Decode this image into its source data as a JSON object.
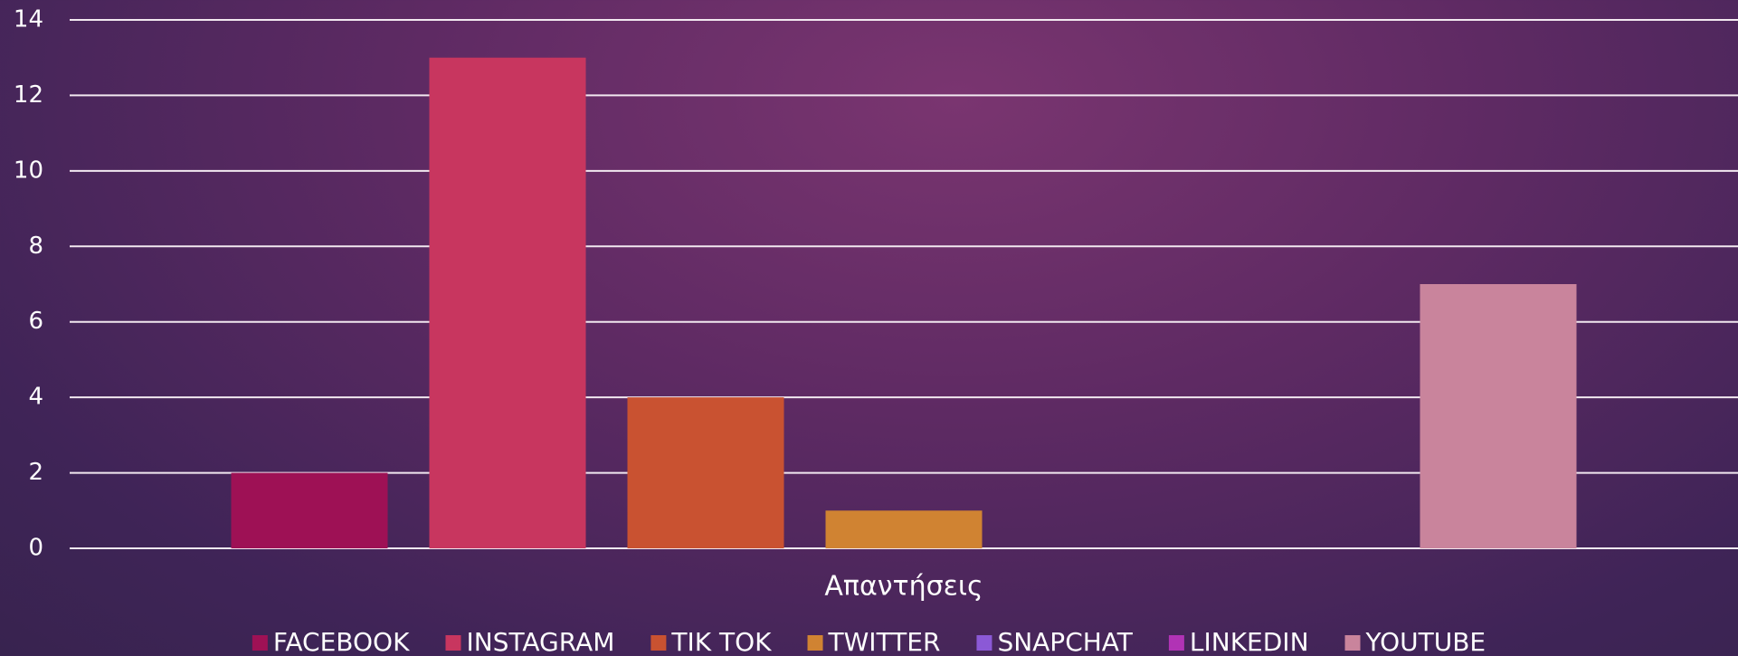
{
  "chart_data": {
    "type": "bar",
    "categories": [
      "Απαντήσεις"
    ],
    "series": [
      {
        "name": "FACEBOOK",
        "color": "#9e1155",
        "values": [
          2
        ]
      },
      {
        "name": "INSTAGRAM",
        "color": "#c8365f",
        "values": [
          13
        ]
      },
      {
        "name": "TIK TOK",
        "color": "#c95231",
        "values": [
          4
        ]
      },
      {
        "name": "TWITTER",
        "color": "#d08332",
        "values": [
          1
        ]
      },
      {
        "name": "SNAPCHAT",
        "color": "#8b59d6",
        "values": [
          0
        ]
      },
      {
        "name": "LINKEDIN",
        "color": "#b133b5",
        "values": [
          0
        ]
      },
      {
        "name": "YOUTUBE",
        "color": "#c9849c",
        "values": [
          7
        ]
      }
    ],
    "ylim": [
      0,
      14
    ],
    "yticks": [
      0,
      2,
      4,
      6,
      8,
      10,
      12,
      14
    ],
    "grid": true,
    "legend": "bottom"
  }
}
